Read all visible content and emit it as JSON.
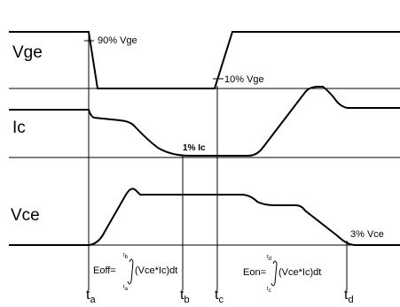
{
  "signals": {
    "vge": "Vge",
    "ic": "Ic",
    "vce": "Vce"
  },
  "annotations": {
    "vge_90": "90% Vge",
    "vge_10": "10% Vge",
    "ic_1": "1% Ic",
    "vce_3": "3% Vce"
  },
  "time_markers": [
    {
      "t": "t",
      "sub": "a"
    },
    {
      "t": "t",
      "sub": "b"
    },
    {
      "t": "t",
      "sub": "c"
    },
    {
      "t": "t",
      "sub": "d"
    }
  ],
  "formulas": {
    "eoff": {
      "lhs": "Eoff=",
      "upper": {
        "t": "t",
        "sub": "b"
      },
      "lower": {
        "t": "t",
        "sub": "a"
      },
      "integrand": "(Vce*Ic)dt"
    },
    "eon": {
      "lhs": "Eon=",
      "upper": {
        "t": "t",
        "sub": "d"
      },
      "lower": {
        "t": "t",
        "sub": "c"
      },
      "integrand": "(Vce*Ic)dt"
    }
  },
  "colors": {
    "waveform": "#000000",
    "baseline": "#000000",
    "background": "#ffffff"
  }
}
